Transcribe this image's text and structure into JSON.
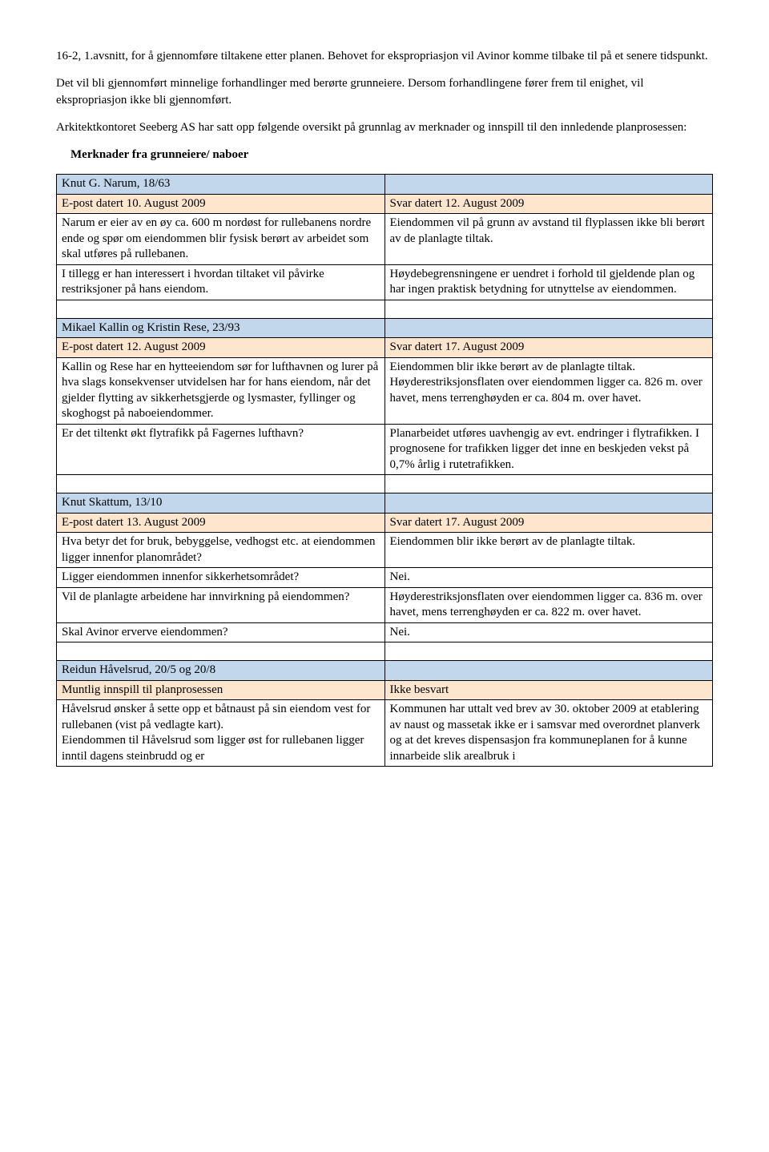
{
  "intro": {
    "p1": "16-2, 1.avsnitt, for å gjennomføre tiltakene etter planen. Behovet for ekspropriasjon vil Avinor komme tilbake til på et senere tidspunkt.",
    "p2": "Det vil bli gjennomført minnelige forhandlinger med berørte grunneiere. Dersom forhandlingene fører frem til enighet, vil ekspropriasjon ikke bli gjennomført.",
    "p3": "Arkitektkontoret Seeberg AS har satt opp følgende oversikt på grunnlag av merknader og innspill til den innledende planprosessen:",
    "heading": "Merknader fra grunneiere/ naboer"
  },
  "colors": {
    "blue": "#c2d7ec",
    "peach": "#fde5ce",
    "white": "#ffffff",
    "border": "#000000"
  },
  "rows": [
    {
      "type": "blue",
      "left": "Knut G. Narum, 18/63",
      "right": ""
    },
    {
      "type": "peach",
      "left": "E-post datert 10. August 2009",
      "right": "Svar datert 12. August 2009"
    },
    {
      "type": "white",
      "left": "Narum er eier av en øy ca. 600 m nordøst for rullebanens nordre ende og spør om eiendommen blir fysisk berørt av arbeidet som skal utføres på rullebanen.",
      "right": "Eiendommen vil på grunn av avstand til flyplassen ikke bli berørt av de planlagte tiltak."
    },
    {
      "type": "white",
      "left": "I tillegg er han interessert i hvordan tiltaket vil påvirke restriksjoner på hans eiendom.",
      "right": "Høydebegrensningene er uendret i forhold til gjeldende plan og har ingen praktisk betydning for utnyttelse av eiendommen."
    },
    {
      "type": "white",
      "left": "",
      "right": ""
    },
    {
      "type": "blue",
      "left": "Mikael Kallin og Kristin Rese, 23/93",
      "right": ""
    },
    {
      "type": "peach",
      "left": "E-post datert 12. August 2009",
      "right": "Svar datert 17. August 2009"
    },
    {
      "type": "white",
      "left": "Kallin og Rese har en hytteeiendom sør for lufthavnen og lurer på hva slags konsekvenser utvidelsen har for hans eiendom, når det gjelder flytting av sikkerhetsgjerde og lysmaster, fyllinger og skoghogst på naboeiendommer.",
      "right": "Eiendommen blir ikke berørt av de planlagte tiltak. Høyderestriksjonsflaten over eiendommen ligger ca. 826 m. over havet, mens terrenghøyden er ca. 804 m. over havet."
    },
    {
      "type": "white",
      "left": "Er det tiltenkt økt flytrafikk på Fagernes lufthavn?",
      "right": "Planarbeidet utføres uavhengig av evt. endringer i flytrafikken. I prognosene for trafikken ligger det inne en beskjeden vekst på 0,7% årlig i rutetrafikken."
    },
    {
      "type": "white",
      "left": "",
      "right": ""
    },
    {
      "type": "blue",
      "left": "Knut Skattum, 13/10",
      "right": ""
    },
    {
      "type": "peach",
      "left": "E-post datert 13. August 2009",
      "right": "Svar datert 17. August 2009"
    },
    {
      "type": "white",
      "left": "Hva betyr det for bruk, bebyggelse, vedhogst etc. at eiendommen ligger innenfor planområdet?",
      "right": "Eiendommen blir ikke berørt av de planlagte tiltak."
    },
    {
      "type": "white",
      "left": "Ligger eiendommen innenfor sikkerhetsområdet?",
      "right": "Nei."
    },
    {
      "type": "white",
      "left": "Vil de planlagte arbeidene har innvirkning på eiendommen?",
      "right": "Høyderestriksjonsflaten over eiendommen ligger ca. 836 m. over havet, mens terrenghøyden er ca. 822 m. over havet."
    },
    {
      "type": "white",
      "left": "Skal Avinor erverve eiendommen?",
      "right": "Nei."
    },
    {
      "type": "white",
      "left": "",
      "right": ""
    },
    {
      "type": "blue",
      "left": "Reidun Håvelsrud, 20/5 og 20/8",
      "right": ""
    },
    {
      "type": "peach",
      "left": "Muntlig innspill til planprosessen",
      "right": "Ikke besvart"
    },
    {
      "type": "white",
      "left": "Håvelsrud ønsker å sette opp et båtnaust på sin eiendom vest for rullebanen (vist på vedlagte kart).\nEiendommen til Håvelsrud som ligger øst for rullebanen ligger inntil dagens steinbrudd og er",
      "right": "Kommunen har uttalt ved brev av 30. oktober 2009 at etablering av naust og massetak ikke er i samsvar med overordnet planverk og at det kreves dispensasjon fra kommuneplanen for å kunne innarbeide slik arealbruk i"
    }
  ]
}
